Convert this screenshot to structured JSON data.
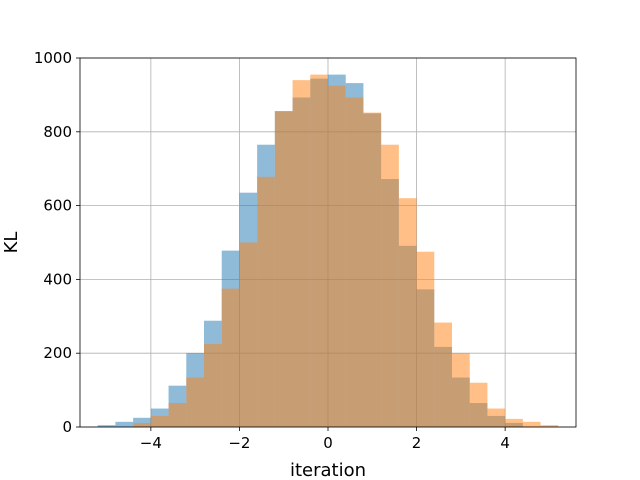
{
  "chart_data": {
    "type": "bar",
    "subtype": "overlapping-histogram",
    "title": "",
    "xlabel": "iteration",
    "ylabel": "KL",
    "xlim": [
      -5.6,
      5.6
    ],
    "ylim": [
      0,
      1000
    ],
    "xticks": [
      -4,
      -2,
      0,
      2,
      4
    ],
    "xtick_labels": [
      "−4",
      "−2",
      "0",
      "2",
      "4"
    ],
    "yticks": [
      0,
      200,
      400,
      600,
      800,
      1000
    ],
    "ytick_labels": [
      "0",
      "200",
      "400",
      "600",
      "800",
      "1000"
    ],
    "grid": true,
    "legend": "none",
    "series": [
      {
        "color": "#1f77b4",
        "alpha": 0.5,
        "bin_edges": [
          -5.2,
          -4.8,
          -4.4,
          -4.0,
          -3.6,
          -3.2,
          -2.8,
          -2.4,
          -2.0,
          -1.6,
          -1.2,
          -0.8,
          -0.4,
          0.0,
          0.4,
          0.8,
          1.2,
          1.6,
          2.0,
          2.4,
          2.8,
          3.2,
          3.6,
          4.0,
          4.4
        ],
        "values": [
          5,
          14,
          25,
          50,
          112,
          200,
          288,
          478,
          635,
          765,
          856,
          893,
          944,
          955,
          932,
          850,
          672,
          491,
          373,
          217,
          134,
          65,
          30,
          11
        ]
      },
      {
        "color": "#ff7f0e",
        "alpha": 0.5,
        "bin_edges": [
          -4.4,
          -4.0,
          -3.6,
          -3.2,
          -2.8,
          -2.4,
          -2.0,
          -1.6,
          -1.2,
          -0.8,
          -0.4,
          0.0,
          0.4,
          0.8,
          1.2,
          1.6,
          2.0,
          2.4,
          2.8,
          3.2,
          3.6,
          4.0,
          4.4,
          4.8,
          5.2
        ],
        "values": [
          11,
          30,
          65,
          134,
          225,
          375,
          500,
          678,
          856,
          940,
          955,
          925,
          893,
          852,
          765,
          620,
          475,
          283,
          200,
          120,
          50,
          22,
          14,
          5
        ]
      }
    ]
  }
}
